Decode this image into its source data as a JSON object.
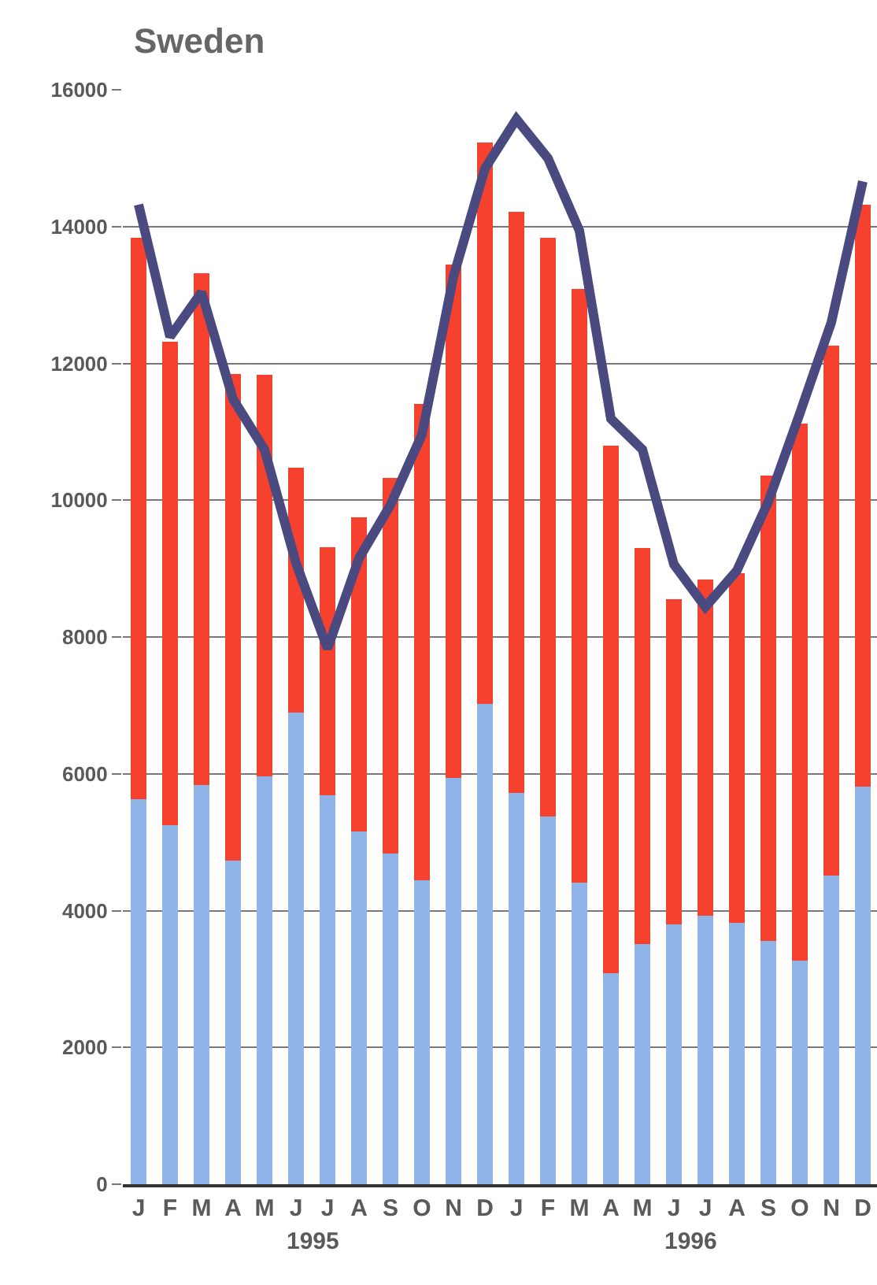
{
  "chart_data": {
    "type": "bar",
    "title": "Sweden",
    "stacked": true,
    "categories": [
      "J",
      "F",
      "M",
      "A",
      "M",
      "J",
      "J",
      "A",
      "S",
      "O",
      "N",
      "D",
      "J",
      "F",
      "M",
      "A",
      "M",
      "J",
      "J",
      "A",
      "S",
      "O",
      "N",
      "D"
    ],
    "series": [
      {
        "color": "#8fb4e8",
        "values": [
          5630,
          5250,
          5840,
          4730,
          5960,
          6890,
          5690,
          5160,
          4830,
          4440,
          5940,
          7020,
          5720,
          5370,
          4410,
          3090,
          3510,
          3800,
          3920,
          3820,
          3560,
          3270,
          4510,
          5810
        ]
      },
      {
        "color": "#f7412f",
        "values": [
          8210,
          7070,
          7480,
          7110,
          5870,
          3580,
          3620,
          4590,
          5490,
          6970,
          7510,
          8210,
          8500,
          8470,
          8680,
          7710,
          5790,
          4750,
          4920,
          5110,
          6800,
          7850,
          7750,
          8510
        ]
      },
      {
        "type": "line",
        "color": "#4b4a80",
        "values": [
          14320,
          12390,
          13040,
          11480,
          10740,
          9080,
          7830,
          9150,
          9930,
          10960,
          13270,
          14850,
          15570,
          15000,
          13940,
          11190,
          10740,
          9060,
          8440,
          8970,
          9980,
          11270,
          12600,
          14660
        ]
      }
    ],
    "annotations": [
      "1995",
      "1996"
    ],
    "ylim": [
      0,
      16000
    ],
    "yticks": [
      0,
      2000,
      4000,
      6000,
      8000,
      10000,
      12000,
      14000,
      16000
    ],
    "grid": "y",
    "marker": "none",
    "line_style": "solid"
  }
}
